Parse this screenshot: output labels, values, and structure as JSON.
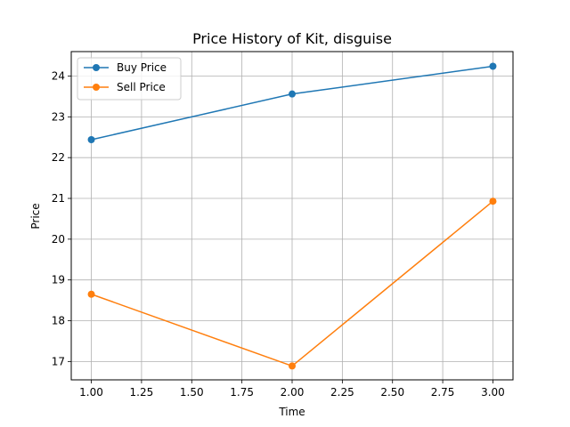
{
  "chart_data": {
    "type": "line",
    "title": "Price History of Kit, disguise",
    "xlabel": "Time",
    "ylabel": "Price",
    "xlim": [
      0.9,
      3.1
    ],
    "ylim": [
      16.55,
      24.6
    ],
    "xticks": [
      1.0,
      1.25,
      1.5,
      1.75,
      2.0,
      2.25,
      2.5,
      2.75,
      3.0
    ],
    "xtick_labels": [
      "1.00",
      "1.25",
      "1.50",
      "1.75",
      "2.00",
      "2.25",
      "2.50",
      "2.75",
      "3.00"
    ],
    "yticks": [
      17,
      18,
      19,
      20,
      21,
      22,
      23,
      24
    ],
    "ytick_labels": [
      "17",
      "18",
      "19",
      "20",
      "21",
      "22",
      "23",
      "24"
    ],
    "grid": true,
    "legend_position": "top-left",
    "x": [
      1,
      2,
      3
    ],
    "series": [
      {
        "name": "Buy Price",
        "values": [
          22.44,
          23.56,
          24.24
        ],
        "color": "#1f77b4"
      },
      {
        "name": "Sell Price",
        "values": [
          18.65,
          16.89,
          20.93
        ],
        "color": "#ff7f0e"
      }
    ]
  }
}
